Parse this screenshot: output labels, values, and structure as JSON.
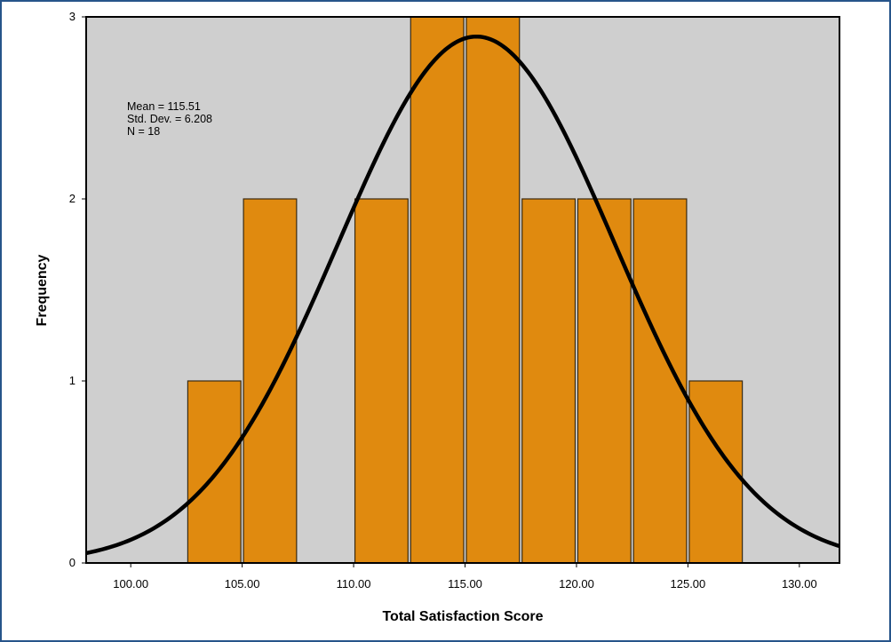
{
  "chart_data": {
    "type": "histogram",
    "xlabel": "Total Satisfaction Score",
    "ylabel": "Frequency",
    "xlim": [
      98.0,
      131.8
    ],
    "ylim": [
      0,
      3.0
    ],
    "x_ticks": [
      100,
      105,
      110,
      115,
      120,
      125,
      130
    ],
    "x_tick_labels": [
      "100.00",
      "105.00",
      "110.00",
      "115.00",
      "120.00",
      "125.00",
      "130.00"
    ],
    "y_ticks": [
      0,
      1,
      2,
      3
    ],
    "y_tick_labels": [
      "0",
      "1",
      "2",
      "3"
    ],
    "bin_width": 2.5,
    "bins": [
      {
        "start": 102.5,
        "end": 105.0,
        "count": 1
      },
      {
        "start": 105.0,
        "end": 107.5,
        "count": 2
      },
      {
        "start": 107.5,
        "end": 110.0,
        "count": 0
      },
      {
        "start": 110.0,
        "end": 112.5,
        "count": 2
      },
      {
        "start": 112.5,
        "end": 115.0,
        "count": 3
      },
      {
        "start": 115.0,
        "end": 117.5,
        "count": 3
      },
      {
        "start": 117.5,
        "end": 120.0,
        "count": 2
      },
      {
        "start": 120.0,
        "end": 122.5,
        "count": 2
      },
      {
        "start": 122.5,
        "end": 125.0,
        "count": 2
      },
      {
        "start": 125.0,
        "end": 127.5,
        "count": 1
      }
    ],
    "normal_curve": {
      "mean": 115.51,
      "std": 6.208,
      "n": 18
    },
    "stats_text": [
      "Mean = 115.51",
      "Std. Dev. = 6.208",
      "N = 18"
    ],
    "colors": {
      "bar_fill": "#e08a0f",
      "bar_stroke": "#3a2a10",
      "plot_background": "#cfcfcf",
      "curve": "#000000",
      "frame_border": "#27548a"
    },
    "grid": false
  }
}
